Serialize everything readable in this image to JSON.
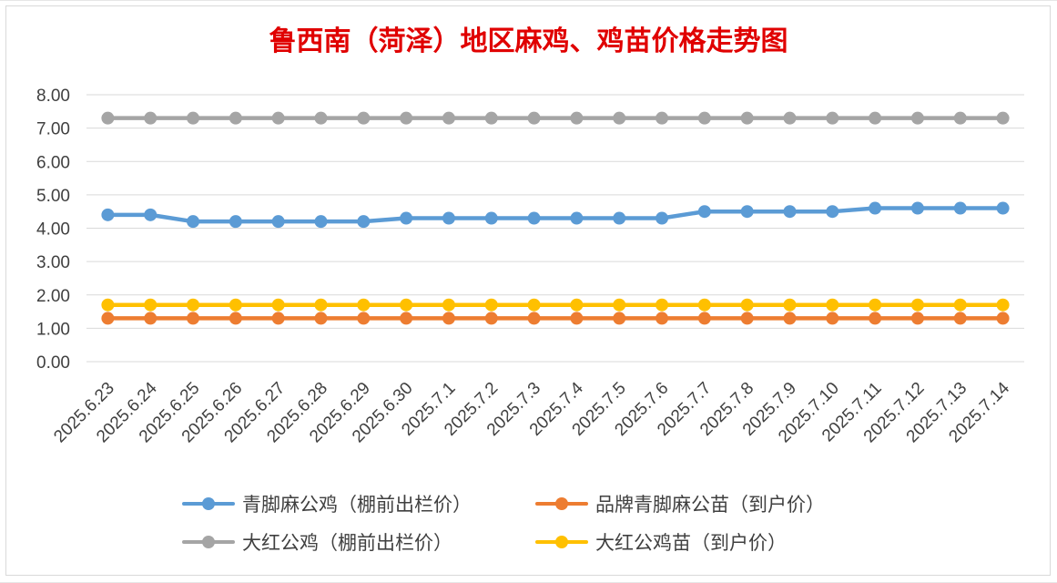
{
  "chart_data": {
    "type": "line",
    "title": "鲁西南（菏泽）地区麻鸡、鸡苗价格走势图",
    "xlabel": "",
    "ylabel": "",
    "ylim": [
      0,
      8
    ],
    "y_ticks": [
      "0.00",
      "1.00",
      "2.00",
      "3.00",
      "4.00",
      "5.00",
      "6.00",
      "7.00",
      "8.00"
    ],
    "grid": true,
    "legend_position": "bottom",
    "categories": [
      "2025.6.23",
      "2025.6.24",
      "2025.6.25",
      "2025.6.26",
      "2025.6.27",
      "2025.6.28",
      "2025.6.29",
      "2025.6.30",
      "2025.7.1",
      "2025.7.2",
      "2025.7.3",
      "2025.7.4",
      "2025.7.5",
      "2025.7.6",
      "2025.7.7",
      "2025.7.8",
      "2025.7.9",
      "2025.7.10",
      "2025.7.11",
      "2025.7.12",
      "2025.7.13",
      "2025.7.14"
    ],
    "series": [
      {
        "name": "青脚麻公鸡（棚前出栏价）",
        "color": "#5b9bd5",
        "values": [
          4.4,
          4.4,
          4.2,
          4.2,
          4.2,
          4.2,
          4.2,
          4.3,
          4.3,
          4.3,
          4.3,
          4.3,
          4.3,
          4.3,
          4.5,
          4.5,
          4.5,
          4.5,
          4.6,
          4.6,
          4.6,
          4.6
        ]
      },
      {
        "name": "品牌青脚麻公苗（到户价）",
        "color": "#ed7d31",
        "values": [
          1.3,
          1.3,
          1.3,
          1.3,
          1.3,
          1.3,
          1.3,
          1.3,
          1.3,
          1.3,
          1.3,
          1.3,
          1.3,
          1.3,
          1.3,
          1.3,
          1.3,
          1.3,
          1.3,
          1.3,
          1.3,
          1.3
        ]
      },
      {
        "name": "大红公鸡（棚前出栏价）",
        "color": "#a5a5a5",
        "values": [
          7.3,
          7.3,
          7.3,
          7.3,
          7.3,
          7.3,
          7.3,
          7.3,
          7.3,
          7.3,
          7.3,
          7.3,
          7.3,
          7.3,
          7.3,
          7.3,
          7.3,
          7.3,
          7.3,
          7.3,
          7.3,
          7.3
        ]
      },
      {
        "name": "大红公鸡苗（到户价）",
        "color": "#ffc000",
        "values": [
          1.7,
          1.7,
          1.7,
          1.7,
          1.7,
          1.7,
          1.7,
          1.7,
          1.7,
          1.7,
          1.7,
          1.7,
          1.7,
          1.7,
          1.7,
          1.7,
          1.7,
          1.7,
          1.7,
          1.7,
          1.7,
          1.7
        ]
      }
    ]
  }
}
